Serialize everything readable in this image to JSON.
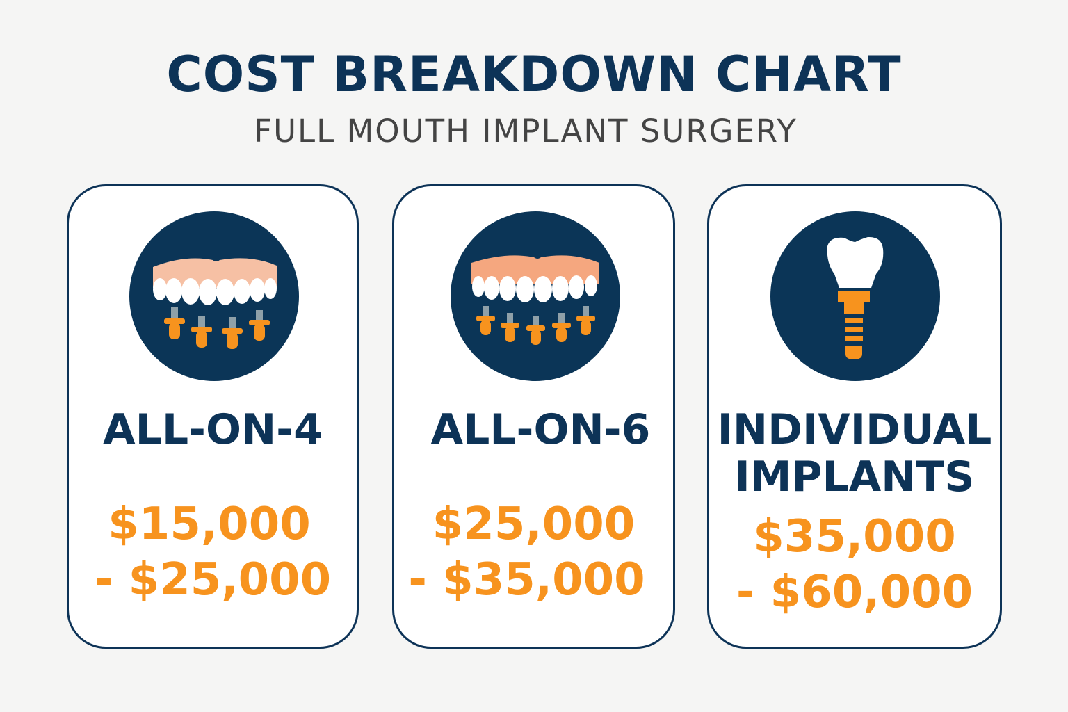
{
  "header": {
    "title": "COST BREAKDOWN CHART",
    "subtitle": "FULL MOUTH IMPLANT SURGERY"
  },
  "colors": {
    "navy": "#0d3357",
    "orange": "#f7931e",
    "gum": "#f6c0a4",
    "background": "#f5f5f4"
  },
  "cards": [
    {
      "name": "ALL-ON-4",
      "price_low": "$15,000",
      "price_high": "- $25,000",
      "icon": "denture-4-implants-icon"
    },
    {
      "name": "ALL-ON-6",
      "price_low": "$25,000",
      "price_high": "- $35,000",
      "icon": "denture-6-implants-icon"
    },
    {
      "name_line1": "INDIVIDUAL",
      "name_line2": "IMPLANTS",
      "price_low": "$35,000",
      "price_high": "- $60,000",
      "icon": "single-tooth-implant-icon"
    }
  ]
}
